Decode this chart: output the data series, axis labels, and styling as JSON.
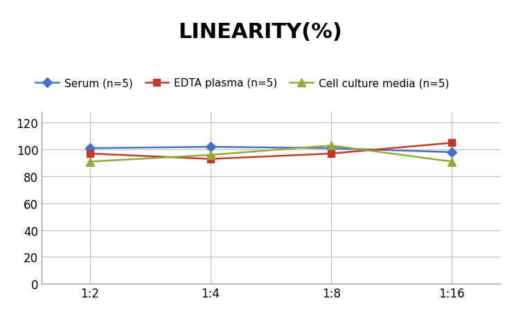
{
  "title": "LINEARITY(%)",
  "x_labels": [
    "1:2",
    "1:4",
    "1:8",
    "1:16"
  ],
  "series": [
    {
      "label": "Serum (n=5)",
      "values": [
        101,
        102,
        101,
        98
      ],
      "color": "#4472C4",
      "marker": "D",
      "markersize": 7,
      "linewidth": 1.8
    },
    {
      "label": "EDTA plasma (n=5)",
      "values": [
        97,
        93,
        97,
        105
      ],
      "color": "#C0392B",
      "marker": "s",
      "markersize": 7,
      "linewidth": 1.8
    },
    {
      "label": "Cell culture media (n=5)",
      "values": [
        91,
        96,
        103,
        91
      ],
      "color": "#92A93C",
      "marker": "^",
      "markersize": 8,
      "linewidth": 1.8
    }
  ],
  "ylim": [
    0,
    128
  ],
  "yticks": [
    0,
    20,
    40,
    60,
    80,
    100,
    120
  ],
  "background_color": "#FFFFFF",
  "title_fontsize": 22,
  "title_fontweight": "bold",
  "legend_fontsize": 11,
  "tick_fontsize": 12,
  "grid_color": "#BBBBBB",
  "grid_linewidth": 0.8
}
